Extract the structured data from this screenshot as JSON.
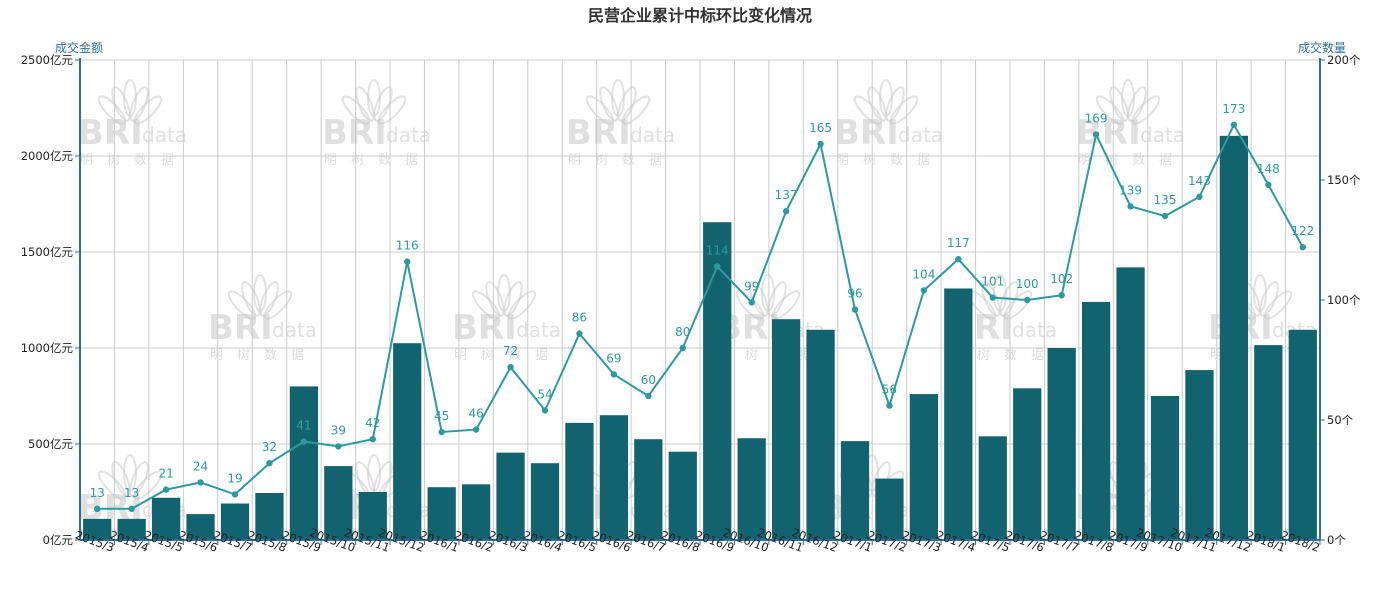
{
  "chart_data": {
    "type": "bar+line",
    "title": "民营企业累计中标环比变化情况",
    "y_left_name": "成交金额",
    "y_right_name": "成交数量",
    "y_left_unit": "亿元",
    "y_right_unit": "个",
    "y_left_range": [
      0,
      2500
    ],
    "y_left_ticks": [
      0,
      500,
      1000,
      1500,
      2000,
      2500
    ],
    "y_right_range": [
      0,
      200
    ],
    "y_right_ticks": [
      0,
      50,
      100,
      150,
      200
    ],
    "grid": true,
    "categories": [
      "2015/3",
      "2015/4",
      "2015/5",
      "2015/6",
      "2015/7",
      "2015/8",
      "2015/9",
      "2015/10",
      "2015/11",
      "2015/12",
      "2016/1",
      "2016/2",
      "2016/3",
      "2016/4",
      "2016/5",
      "2016/6",
      "2016/7",
      "2016/8",
      "2016/9",
      "2016/10",
      "2016/11",
      "2016/12",
      "2017/1",
      "2017/2",
      "2017/3",
      "2017/4",
      "2017/5",
      "2017/6",
      "2017/7",
      "2017/8",
      "2017/9",
      "2017/10",
      "2017/11",
      "2017/12",
      "2018/1",
      "2018/2"
    ],
    "series": [
      {
        "type": "bar",
        "axis": "left",
        "color": "#11636f",
        "values": [
          110,
          110,
          220,
          135,
          190,
          245,
          800,
          385,
          250,
          1025,
          275,
          290,
          455,
          400,
          610,
          650,
          525,
          460,
          1655,
          530,
          1150,
          1095,
          515,
          320,
          760,
          1310,
          540,
          790,
          1000,
          1240,
          1420,
          750,
          885,
          2105,
          1015,
          1095
        ]
      },
      {
        "type": "line",
        "axis": "right",
        "color": "#2e9aa0",
        "values": [
          13,
          13,
          21,
          24,
          19,
          32,
          41,
          39,
          42,
          116,
          45,
          46,
          72,
          54,
          86,
          69,
          60,
          80,
          114,
          99,
          137,
          165,
          96,
          56,
          104,
          117,
          101,
          100,
          102,
          169,
          139,
          135,
          143,
          173,
          148,
          122
        ]
      }
    ]
  },
  "watermark": {
    "brand": "BRI",
    "suffix": "data",
    "cn": "明树数据",
    "color": "#c8c8c8"
  }
}
